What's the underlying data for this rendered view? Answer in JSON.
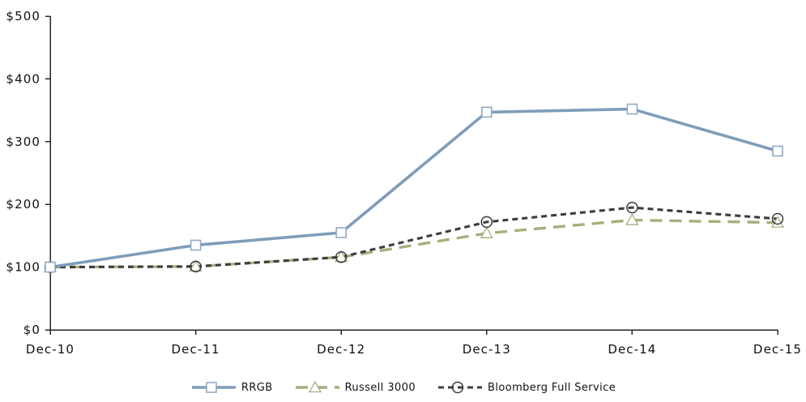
{
  "chart_data": {
    "type": "line",
    "title": "",
    "xlabel": "",
    "ylabel": "",
    "categories": [
      "Dec-10",
      "Dec-11",
      "Dec-12",
      "Dec-13",
      "Dec-14",
      "Dec-15"
    ],
    "series": [
      {
        "name": "RRGB",
        "values": [
          100,
          135,
          155,
          347,
          352,
          285
        ],
        "color": "#7e9dba",
        "marker_color": "#8fabc5",
        "dash": "solid",
        "marker": "square",
        "width": 3.6
      },
      {
        "name": "Russell 3000",
        "values": [
          100,
          101,
          116,
          154,
          175,
          171
        ],
        "color": "#a9ae7c",
        "marker_color": "#a9ae7c",
        "dash": "long-dash",
        "marker": "triangle",
        "width": 3.4
      },
      {
        "name": "Bloomberg Full Service",
        "values": [
          100,
          101,
          116,
          172,
          195,
          177
        ],
        "color": "#3d3d3d",
        "marker_color": "#3a3a3a",
        "dash": "short-dash",
        "marker": "circle",
        "width": 3.1
      }
    ],
    "ylim": [
      0,
      500
    ],
    "ytick_labels": [
      "$0",
      "$100",
      "$200",
      "$300",
      "$400",
      "$500"
    ],
    "grid": false,
    "legend_position": "bottom",
    "axis_color": "#262626"
  }
}
